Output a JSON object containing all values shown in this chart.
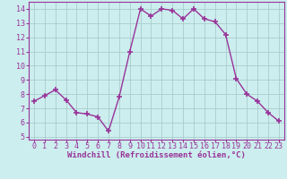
{
  "x": [
    0,
    1,
    2,
    3,
    4,
    5,
    6,
    7,
    8,
    9,
    10,
    11,
    12,
    13,
    14,
    15,
    16,
    17,
    18,
    19,
    20,
    21,
    22,
    23
  ],
  "y": [
    7.5,
    7.9,
    8.3,
    7.6,
    6.7,
    6.6,
    6.4,
    5.4,
    7.8,
    11.0,
    14.0,
    13.5,
    14.0,
    13.9,
    13.3,
    14.0,
    13.3,
    13.1,
    12.2,
    9.1,
    8.0,
    7.5,
    6.7,
    6.1
  ],
  "line_color": "#993399",
  "marker": "+",
  "marker_size": 4,
  "marker_lw": 1.2,
  "line_width": 1.0,
  "bg_color": "#cceeee",
  "grid_color": "#aacccc",
  "xlabel": "Windchill (Refroidissement éolien,°C)",
  "xlabel_color": "#993399",
  "tick_color": "#993399",
  "xlabel_fontsize": 6.5,
  "tick_fontsize": 6.0,
  "xlim": [
    -0.5,
    23.5
  ],
  "ylim": [
    4.8,
    14.5
  ],
  "yticks": [
    5,
    6,
    7,
    8,
    9,
    10,
    11,
    12,
    13,
    14
  ],
  "xticks": [
    0,
    1,
    2,
    3,
    4,
    5,
    6,
    7,
    8,
    9,
    10,
    11,
    12,
    13,
    14,
    15,
    16,
    17,
    18,
    19,
    20,
    21,
    22,
    23
  ]
}
